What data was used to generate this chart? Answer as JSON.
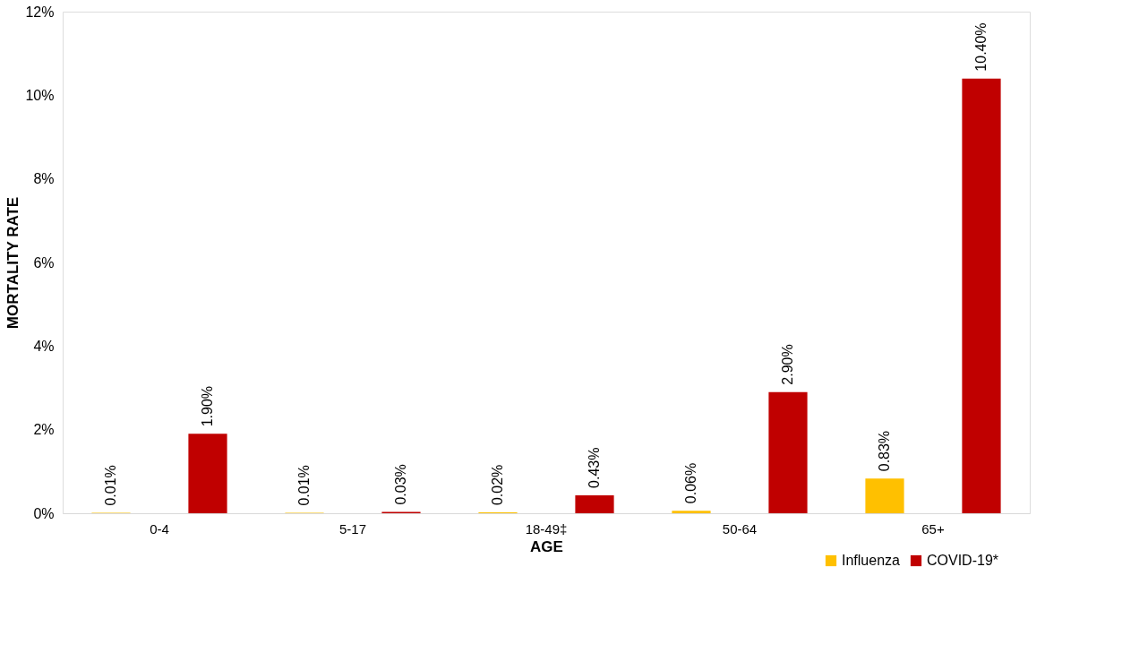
{
  "chart_data": {
    "type": "bar",
    "xlabel": "AGE",
    "ylabel": "MORTALITY RATE",
    "categories": [
      "0-4",
      "5-17",
      "18-49‡",
      "50-64",
      "65+"
    ],
    "series": [
      {
        "name": "Influenza",
        "color": "#ffc000",
        "values": [
          0.01,
          0.01,
          0.02,
          0.06,
          0.83
        ],
        "value_labels": [
          "0.01%",
          "0.01%",
          "0.02%",
          "0.06%",
          "0.83%"
        ]
      },
      {
        "name": "COVID-19*",
        "color": "#c00000",
        "values": [
          1.9,
          0.03,
          0.43,
          2.9,
          10.4
        ],
        "value_labels": [
          "1.90%",
          "0.03%",
          "0.43%",
          "2.90%",
          "10.40%"
        ]
      }
    ],
    "ylim": [
      0,
      12
    ],
    "yticks": [
      {
        "value": 0,
        "label": "0%"
      },
      {
        "value": 2,
        "label": "2%"
      },
      {
        "value": 4,
        "label": "4%"
      },
      {
        "value": 6,
        "label": "6%"
      },
      {
        "value": 8,
        "label": "8%"
      },
      {
        "value": 10,
        "label": "10%"
      },
      {
        "value": 12,
        "label": "12%"
      }
    ],
    "grid": false,
    "legend": "bottom right"
  }
}
